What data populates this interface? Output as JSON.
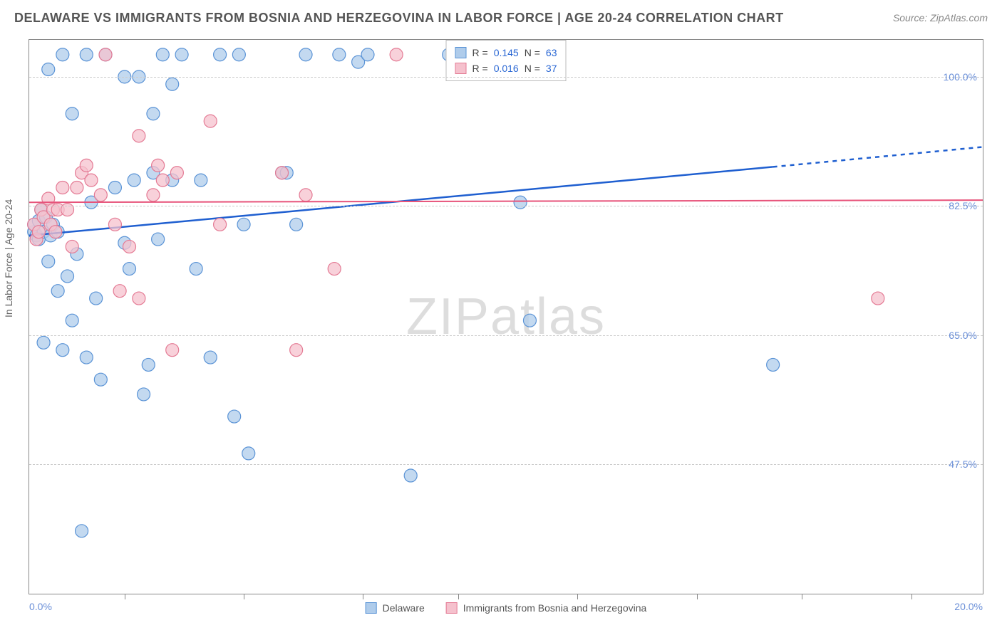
{
  "title": "DELAWARE VS IMMIGRANTS FROM BOSNIA AND HERZEGOVINA IN LABOR FORCE | AGE 20-24 CORRELATION CHART",
  "source_label": "Source: ZipAtlas.com",
  "y_axis_title": "In Labor Force | Age 20-24",
  "watermark": "ZIPatlas",
  "chart": {
    "type": "scatter",
    "background_color": "#ffffff",
    "grid_color": "#cccccc",
    "grid_dash": "4,4",
    "border_color": "#888888",
    "x_axis": {
      "min": 0.0,
      "max": 20.0,
      "min_label": "0.0%",
      "max_label": "20.0%",
      "tick_positions": [
        2.0,
        4.5,
        7.0,
        9.0,
        11.5,
        14.0,
        16.2,
        18.5
      ],
      "label_color": "#6a8fd8",
      "label_fontsize": 14
    },
    "y_axis": {
      "min": 30.0,
      "max": 105.0,
      "grid_values": [
        47.5,
        65.0,
        82.5,
        100.0
      ],
      "grid_labels": [
        "47.5%",
        "65.0%",
        "82.5%",
        "100.0%"
      ],
      "label_color": "#6a8fd8",
      "label_fontsize": 14
    },
    "series": [
      {
        "name": "Delaware",
        "marker_fill": "#afcceb",
        "marker_stroke": "#5a93d6",
        "marker_radius": 9,
        "marker_opacity": 0.75,
        "trend_color": "#1f5fd0",
        "trend_width": 2.5,
        "trend_y_start": 78.5,
        "trend_y_end_solid_x": 15.6,
        "trend_y_end_solid": 87.8,
        "trend_y_end": 90.5,
        "R_label": "R =",
        "R_value": "0.145",
        "N_label": "N =",
        "N_value": "63",
        "points": [
          [
            0.1,
            79
          ],
          [
            0.1,
            80
          ],
          [
            0.15,
            78.5
          ],
          [
            0.2,
            80.5
          ],
          [
            0.2,
            78
          ],
          [
            0.25,
            82
          ],
          [
            0.3,
            79
          ],
          [
            0.3,
            64
          ],
          [
            0.35,
            81
          ],
          [
            0.4,
            75
          ],
          [
            0.4,
            101
          ],
          [
            0.45,
            78.5
          ],
          [
            0.5,
            80
          ],
          [
            0.6,
            71
          ],
          [
            0.6,
            79
          ],
          [
            0.7,
            103
          ],
          [
            0.7,
            63
          ],
          [
            0.8,
            73
          ],
          [
            0.9,
            67
          ],
          [
            0.9,
            95
          ],
          [
            1.0,
            76
          ],
          [
            1.1,
            38.5
          ],
          [
            1.2,
            62
          ],
          [
            1.2,
            103
          ],
          [
            1.3,
            83
          ],
          [
            1.4,
            70
          ],
          [
            1.5,
            59
          ],
          [
            1.6,
            103
          ],
          [
            1.8,
            85
          ],
          [
            2.0,
            100
          ],
          [
            2.0,
            77.5
          ],
          [
            2.1,
            74
          ],
          [
            2.2,
            86
          ],
          [
            2.3,
            100
          ],
          [
            2.4,
            57
          ],
          [
            2.5,
            61
          ],
          [
            2.6,
            87
          ],
          [
            2.6,
            95
          ],
          [
            2.7,
            78
          ],
          [
            2.8,
            103
          ],
          [
            3.0,
            86
          ],
          [
            3.0,
            99
          ],
          [
            3.2,
            103
          ],
          [
            3.5,
            74
          ],
          [
            3.6,
            86
          ],
          [
            3.8,
            62
          ],
          [
            4.0,
            103
          ],
          [
            4.3,
            54
          ],
          [
            4.4,
            103
          ],
          [
            4.5,
            80
          ],
          [
            4.6,
            49
          ],
          [
            5.3,
            87
          ],
          [
            5.4,
            87
          ],
          [
            5.6,
            80
          ],
          [
            5.8,
            103
          ],
          [
            6.5,
            103
          ],
          [
            6.9,
            102
          ],
          [
            7.1,
            103
          ],
          [
            8.0,
            46
          ],
          [
            8.8,
            103
          ],
          [
            10.3,
            83
          ],
          [
            10.5,
            67
          ],
          [
            15.6,
            61
          ]
        ]
      },
      {
        "name": "Immigrants from Bosnia and Herzegovina",
        "marker_fill": "#f5c1cd",
        "marker_stroke": "#e47a94",
        "marker_radius": 9,
        "marker_opacity": 0.75,
        "trend_color": "#e7537a",
        "trend_width": 2,
        "trend_y_start": 83.0,
        "trend_y_end": 83.3,
        "R_label": "R =",
        "R_value": "0.016",
        "N_label": "N =",
        "N_value": "37",
        "points": [
          [
            0.1,
            80
          ],
          [
            0.15,
            78
          ],
          [
            0.2,
            79
          ],
          [
            0.25,
            82
          ],
          [
            0.3,
            81
          ],
          [
            0.4,
            83.5
          ],
          [
            0.45,
            80
          ],
          [
            0.5,
            82
          ],
          [
            0.55,
            79
          ],
          [
            0.6,
            82
          ],
          [
            0.7,
            85
          ],
          [
            0.8,
            82
          ],
          [
            0.9,
            77
          ],
          [
            1.0,
            85
          ],
          [
            1.1,
            87
          ],
          [
            1.2,
            88
          ],
          [
            1.3,
            86
          ],
          [
            1.5,
            84
          ],
          [
            1.6,
            103
          ],
          [
            1.8,
            80
          ],
          [
            1.9,
            71
          ],
          [
            2.1,
            77
          ],
          [
            2.3,
            92
          ],
          [
            2.3,
            70
          ],
          [
            2.6,
            84
          ],
          [
            2.7,
            88
          ],
          [
            2.8,
            86
          ],
          [
            3.0,
            63
          ],
          [
            3.1,
            87
          ],
          [
            3.8,
            94
          ],
          [
            4.0,
            80
          ],
          [
            5.3,
            87
          ],
          [
            5.6,
            63
          ],
          [
            5.8,
            84
          ],
          [
            6.4,
            74
          ],
          [
            7.7,
            103
          ],
          [
            17.8,
            70
          ]
        ]
      }
    ],
    "legend_bottom": {
      "items": [
        {
          "swatch_fill": "#afcceb",
          "swatch_stroke": "#5a93d6",
          "label": "Delaware"
        },
        {
          "swatch_fill": "#f5c1cd",
          "swatch_stroke": "#e47a94",
          "label": "Immigrants from Bosnia and Herzegovina"
        }
      ]
    }
  }
}
